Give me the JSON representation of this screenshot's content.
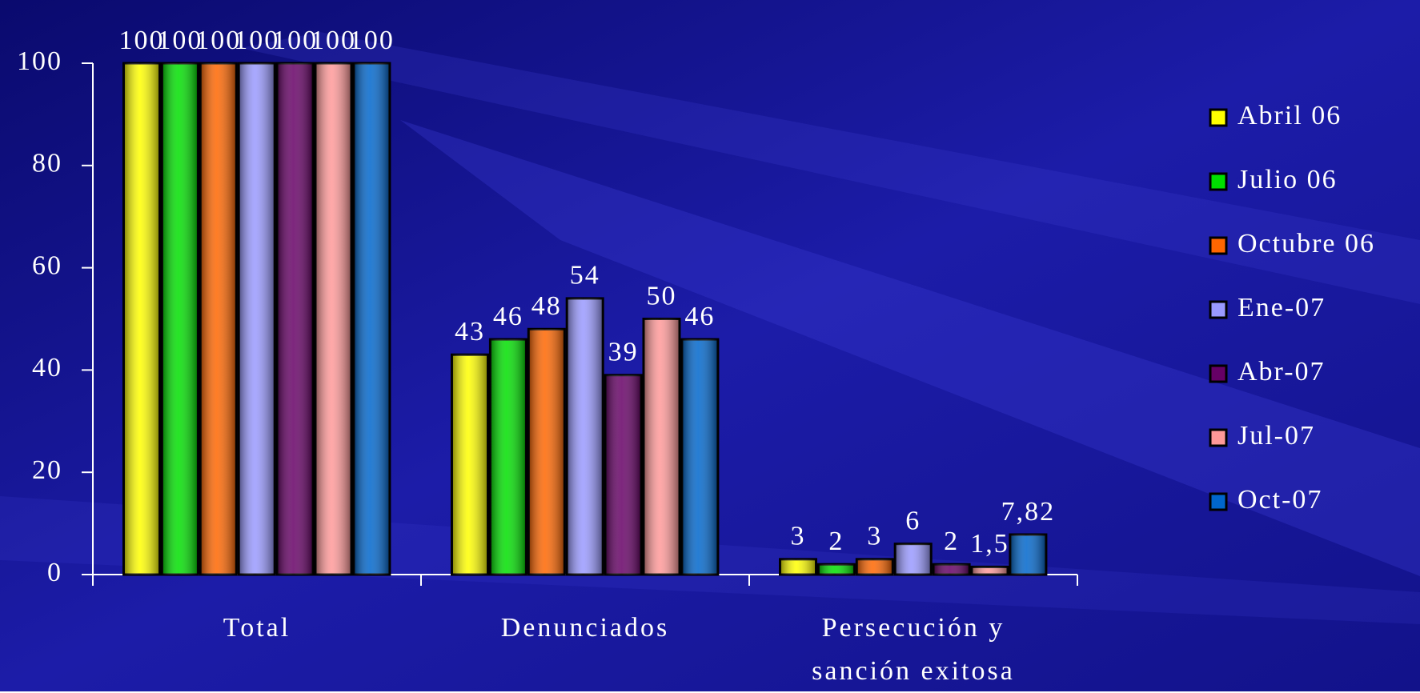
{
  "chart_data": {
    "type": "bar",
    "categories": [
      "Total",
      "Denunciados",
      "Persecución y sanción exitosa"
    ],
    "series": [
      {
        "name": "Abril 06",
        "color": "#ffff00",
        "values": [
          100,
          43,
          3
        ]
      },
      {
        "name": "Julio 06",
        "color": "#00e000",
        "values": [
          100,
          46,
          2
        ]
      },
      {
        "name": "Octubre 06",
        "color": "#ff6600",
        "values": [
          100,
          48,
          3
        ]
      },
      {
        "name": "Ene-07",
        "color": "#9999ff",
        "values": [
          100,
          54,
          6
        ]
      },
      {
        "name": "Abr-07",
        "color": "#660066",
        "values": [
          100,
          39,
          2
        ]
      },
      {
        "name": "Jul-07",
        "color": "#ff9999",
        "values": [
          100,
          50,
          1.5
        ],
        "value_labels": [
          "100",
          "50",
          "1,5"
        ]
      },
      {
        "name": "Oct-07",
        "color": "#0066cc",
        "values": [
          100,
          46,
          7.82
        ],
        "value_labels": [
          "100",
          "46",
          "7,82"
        ]
      }
    ],
    "ylim": [
      0,
      100
    ],
    "yticks": [
      0,
      20,
      40,
      60,
      80,
      100
    ],
    "grid": false,
    "legend": "right"
  }
}
